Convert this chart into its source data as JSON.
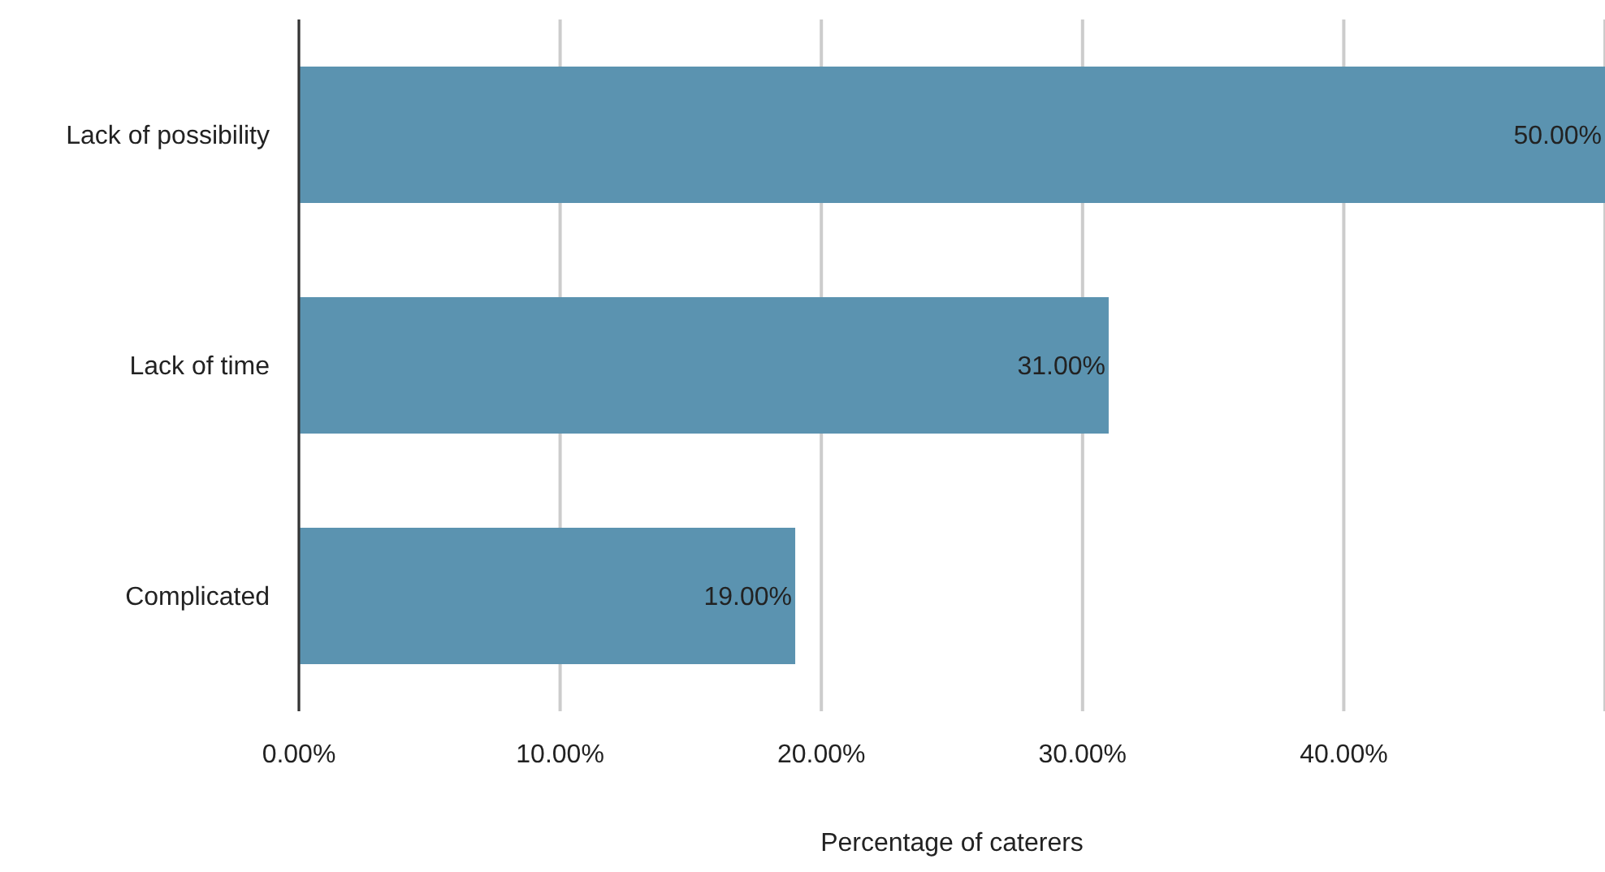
{
  "chart_data": {
    "type": "bar",
    "orientation": "horizontal",
    "xlabel": "Percentage of caterers",
    "categories": [
      "Lack of possibility",
      "Lack of time",
      "Complicated"
    ],
    "values": [
      50,
      31,
      19
    ],
    "value_labels": [
      "50.00%",
      "31.00%",
      "19.00%"
    ],
    "color": "#5b93b0",
    "xlim": [
      0,
      50
    ],
    "xticks": [
      {
        "value": 0,
        "label": "0.00%"
      },
      {
        "value": 10,
        "label": "10.00%"
      },
      {
        "value": 20,
        "label": "20.00%"
      },
      {
        "value": 30,
        "label": "30.00%"
      },
      {
        "value": 40,
        "label": "40.00%"
      }
    ],
    "grid": "x"
  }
}
